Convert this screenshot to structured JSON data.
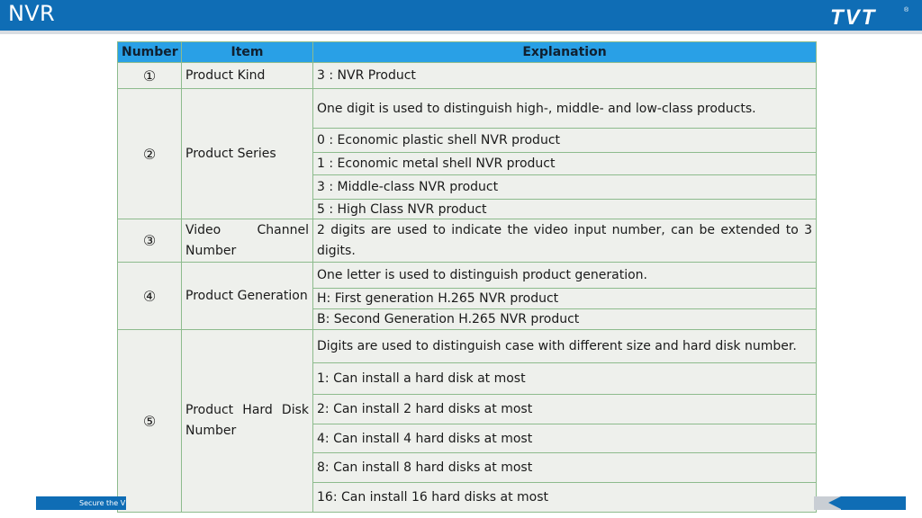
{
  "header": {
    "title": "NVR",
    "logo_text": "TVT",
    "logo_mark": "®",
    "bar_color": "#0f6db5"
  },
  "footer": {
    "slogan": "Secure the V"
  },
  "table": {
    "header_color": "#29a0e6",
    "columns": [
      "Number",
      "Item",
      "Explanation"
    ],
    "sections": [
      {
        "number": "①",
        "item": "Product Kind",
        "rows": [
          "3  :  NVR Product"
        ]
      },
      {
        "number": "②",
        "item": "Product Series",
        "rows": [
          "One digit is used to distinguish high-, middle- and low-class products.",
          "0  :  Economic plastic shell NVR product",
          "1  :  Economic metal shell NVR product",
          "3  :  Middle-class NVR product",
          "5  :  High Class NVR product"
        ]
      },
      {
        "number": "③",
        "item": "Video Channel Number",
        "rows": [
          "2 digits are used to indicate the video input number, can be extended to 3 digits."
        ]
      },
      {
        "number": "④",
        "item": "Product Generation",
        "rows": [
          "One letter is used to distinguish product generation.",
          "H: First generation H.265 NVR product",
          "B: Second Generation H.265 NVR product"
        ]
      },
      {
        "number": "⑤",
        "item": "Product Hard Disk Number",
        "rows": [
          "Digits are used to distinguish case with different size and hard disk number.",
          "1: Can install a hard disk at most",
          "2: Can install 2 hard disks at most",
          "4: Can install 4 hard disks at most",
          "8: Can install 8 hard disks at most",
          "16: Can install 16 hard disks at most"
        ]
      }
    ]
  }
}
